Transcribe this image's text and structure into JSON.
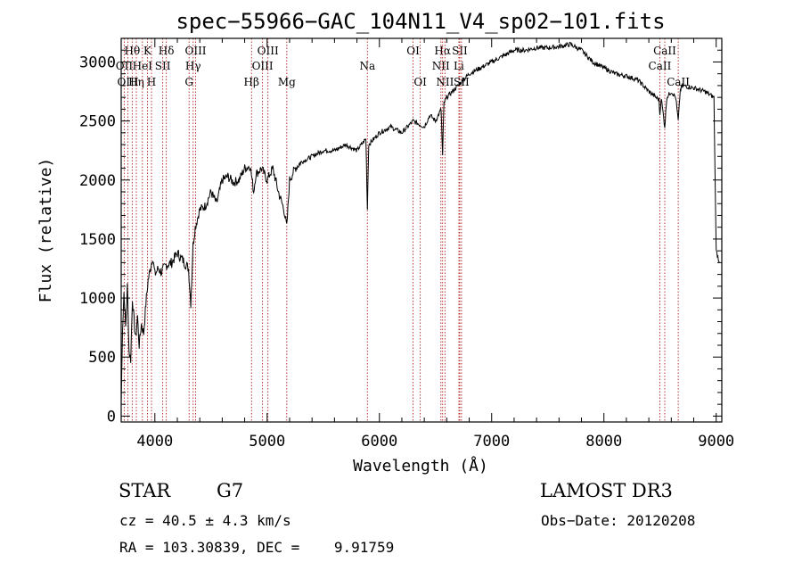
{
  "chart_data": {
    "type": "line",
    "title": "spec−55966−GAC_104N11_V4_sp02−101.fits",
    "xlabel": "Wavelength (Å)",
    "ylabel": "Flux (relative)",
    "xlim": [
      3700,
      9050
    ],
    "ylim": [
      -50,
      3200
    ],
    "x_ticks": [
      4000,
      5000,
      6000,
      7000,
      8000,
      9000
    ],
    "y_ticks": [
      0,
      500,
      1000,
      1500,
      2000,
      2500,
      3000
    ],
    "series": [
      {
        "name": "flux",
        "x": [
          3700,
          3712,
          3725,
          3740,
          3755,
          3770,
          3785,
          3800,
          3815,
          3830,
          3845,
          3860,
          3880,
          3900,
          3920,
          3940,
          3960,
          3980,
          4000,
          4030,
          4060,
          4100,
          4150,
          4200,
          4250,
          4300,
          4320,
          4340,
          4360,
          4400,
          4450,
          4500,
          4550,
          4600,
          4650,
          4700,
          4750,
          4800,
          4850,
          4880,
          4900,
          4950,
          5000,
          5050,
          5100,
          5150,
          5175,
          5200,
          5250,
          5300,
          5400,
          5500,
          5600,
          5700,
          5800,
          5880,
          5893,
          5905,
          6000,
          6100,
          6200,
          6300,
          6400,
          6450,
          6500,
          6550,
          6563,
          6575,
          6600,
          6650,
          6700,
          6800,
          6900,
          7000,
          7100,
          7200,
          7300,
          7400,
          7500,
          7600,
          7700,
          7800,
          7900,
          8000,
          8100,
          8200,
          8300,
          8400,
          8490,
          8498,
          8510,
          8542,
          8560,
          8600,
          8640,
          8662,
          8680,
          8700,
          8800,
          8900,
          8980,
          9000,
          9030
        ],
        "y": [
          100,
          750,
          1050,
          750,
          1100,
          550,
          480,
          1000,
          800,
          650,
          850,
          600,
          780,
          700,
          950,
          1150,
          1250,
          1350,
          1200,
          1250,
          1220,
          1280,
          1300,
          1380,
          1320,
          1250,
          950,
          1450,
          1600,
          1750,
          1780,
          1900,
          1800,
          2000,
          2030,
          1980,
          2000,
          2100,
          2120,
          1900,
          2050,
          2100,
          2000,
          2100,
          1900,
          1750,
          1600,
          2000,
          2100,
          2150,
          2200,
          2250,
          2250,
          2300,
          2250,
          2350,
          1750,
          2300,
          2400,
          2450,
          2400,
          2500,
          2450,
          2550,
          2500,
          2600,
          2200,
          2650,
          2700,
          2750,
          2800,
          2900,
          2950,
          3000,
          3050,
          3100,
          3100,
          3120,
          3120,
          3130,
          3150,
          3100,
          3000,
          2950,
          2900,
          2880,
          2850,
          2750,
          2680,
          2550,
          2700,
          2450,
          2700,
          2750,
          2700,
          2500,
          2760,
          2800,
          2780,
          2750,
          2700,
          1400,
          1300
        ]
      }
    ],
    "spectral_lines": [
      {
        "name": "Hθ",
        "wavelength": 3798,
        "row": 0
      },
      {
        "name": "OII",
        "wavelength": 3727,
        "row": 1
      },
      {
        "name": "OIII",
        "wavelength": 3760,
        "row": 2
      },
      {
        "name": "Hη",
        "wavelength": 3835,
        "row": 2
      },
      {
        "name": "HeI",
        "wavelength": 3889,
        "row": 1
      },
      {
        "name": "K",
        "wavelength": 3934,
        "row": 0
      },
      {
        "name": "H",
        "wavelength": 3970,
        "row": 2
      },
      {
        "name": "SII",
        "wavelength": 4070,
        "row": 1
      },
      {
        "name": "Hδ",
        "wavelength": 4102,
        "row": 0
      },
      {
        "name": "OIII",
        "wavelength": 4363,
        "row": 0
      },
      {
        "name": "Hγ",
        "wavelength": 4341,
        "row": 1
      },
      {
        "name": "G",
        "wavelength": 4305,
        "row": 2
      },
      {
        "name": "Hβ",
        "wavelength": 4861,
        "row": 2
      },
      {
        "name": "OIII",
        "wavelength": 5007,
        "row": 0
      },
      {
        "name": "OIII",
        "wavelength": 4959,
        "row": 1
      },
      {
        "name": "Mg",
        "wavelength": 5175,
        "row": 2
      },
      {
        "name": "Na",
        "wavelength": 5893,
        "row": 1
      },
      {
        "name": "OI",
        "wavelength": 6300,
        "row": 0
      },
      {
        "name": "OI",
        "wavelength": 6364,
        "row": 2
      },
      {
        "name": "Hα",
        "wavelength": 6563,
        "row": 0
      },
      {
        "name": "SII",
        "wavelength": 6716,
        "row": 0
      },
      {
        "name": "NII",
        "wavelength": 6548,
        "row": 1
      },
      {
        "name": "Li",
        "wavelength": 6708,
        "row": 1
      },
      {
        "name": "NII",
        "wavelength": 6584,
        "row": 2
      },
      {
        "name": "SII",
        "wavelength": 6731,
        "row": 2
      },
      {
        "name": "CaII",
        "wavelength": 8542,
        "row": 0
      },
      {
        "name": "CaII",
        "wavelength": 8498,
        "row": 1
      },
      {
        "name": "CaII",
        "wavelength": 8662,
        "row": 2
      }
    ]
  },
  "info": {
    "class": "STAR",
    "subclass": "G7",
    "survey": "LAMOST DR3",
    "cz": "cz = 40.5 ± 4.3 km/s",
    "obs_date": "Obs−Date: 20120208",
    "coords": "RA = 103.30839, DEC =    9.91759"
  },
  "colors": {
    "line_marker": "#b22222",
    "spectrum": "#000000"
  }
}
